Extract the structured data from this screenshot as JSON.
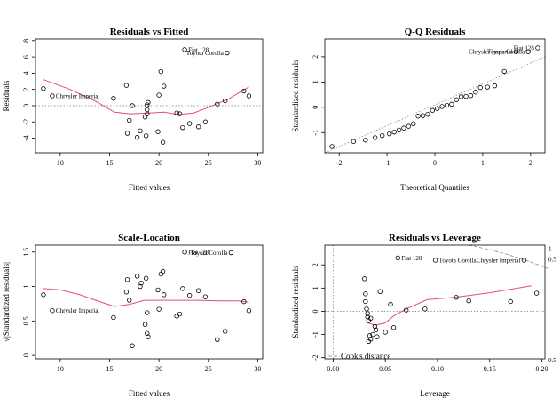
{
  "chart_data": [
    {
      "type": "scatter",
      "title": "Residuals vs Fitted",
      "xlabel": "Fitted values",
      "ylabel": "Residuals",
      "xlim": [
        7.5,
        30.5
      ],
      "ylim": [
        -5.8,
        8.2
      ],
      "xticks": [
        10,
        15,
        20,
        25,
        30
      ],
      "yticks": [
        -4,
        -2,
        0,
        2,
        4,
        6,
        8
      ],
      "refline": 0,
      "points": [
        {
          "x": 8.3,
          "y": 2.1
        },
        {
          "x": 9.2,
          "y": 1.2,
          "label": "Chrysler Imperial"
        },
        {
          "x": 15.4,
          "y": 0.9
        },
        {
          "x": 16.7,
          "y": 2.5
        },
        {
          "x": 16.8,
          "y": -3.4
        },
        {
          "x": 17.0,
          "y": -1.8
        },
        {
          "x": 17.3,
          "y": 0.0
        },
        {
          "x": 17.8,
          "y": -3.9
        },
        {
          "x": 18.1,
          "y": -3.1
        },
        {
          "x": 18.6,
          "y": -1.4
        },
        {
          "x": 18.7,
          "y": -3.7
        },
        {
          "x": 18.8,
          "y": -1.0
        },
        {
          "x": 18.8,
          "y": -0.5
        },
        {
          "x": 18.8,
          "y": 0.1
        },
        {
          "x": 18.9,
          "y": 0.4
        },
        {
          "x": 19.9,
          "y": -3.2
        },
        {
          "x": 20.0,
          "y": 1.3
        },
        {
          "x": 20.2,
          "y": 4.2
        },
        {
          "x": 20.4,
          "y": -4.5
        },
        {
          "x": 20.5,
          "y": 2.4
        },
        {
          "x": 21.8,
          "y": -0.9
        },
        {
          "x": 22.1,
          "y": -1.0
        },
        {
          "x": 22.4,
          "y": -2.7
        },
        {
          "x": 23.1,
          "y": -2.2
        },
        {
          "x": 24.0,
          "y": -2.6
        },
        {
          "x": 24.7,
          "y": -2.0
        },
        {
          "x": 25.9,
          "y": 0.2
        },
        {
          "x": 26.7,
          "y": 0.6
        },
        {
          "x": 22.6,
          "y": 6.9,
          "label": "Fiat 128"
        },
        {
          "x": 28.6,
          "y": 1.8
        },
        {
          "x": 29.1,
          "y": 1.2
        },
        {
          "x": 26.9,
          "y": 6.5,
          "label": "Toyota Corolla"
        }
      ],
      "smooth": [
        [
          8.3,
          3.2
        ],
        [
          11,
          2.0
        ],
        [
          13.5,
          0.6
        ],
        [
          15.5,
          -0.8
        ],
        [
          17,
          -1.0
        ],
        [
          19,
          -0.9
        ],
        [
          20.5,
          -0.8
        ],
        [
          22,
          -1.1
        ],
        [
          23.5,
          -0.9
        ],
        [
          25,
          -0.2
        ],
        [
          27,
          0.8
        ],
        [
          29.1,
          2.3
        ]
      ]
    },
    {
      "type": "scatter",
      "title": "Q-Q Residuals",
      "xlabel": "Theoretical Quantiles",
      "ylabel": "Standardized residuals",
      "xlim": [
        -2.3,
        2.3
      ],
      "ylim": [
        -1.8,
        2.7
      ],
      "xticks": [
        -2,
        -1,
        0,
        1,
        2
      ],
      "yticks": [
        -1,
        0,
        1,
        2
      ],
      "refline_diagonal": [
        [
          -2.3,
          -1.8
        ],
        [
          2.3,
          2.0
        ]
      ],
      "points": [
        {
          "x": -2.15,
          "y": -1.55
        },
        {
          "x": -1.7,
          "y": -1.35
        },
        {
          "x": -1.45,
          "y": -1.3
        },
        {
          "x": -1.25,
          "y": -1.2
        },
        {
          "x": -1.1,
          "y": -1.12
        },
        {
          "x": -0.95,
          "y": -1.05
        },
        {
          "x": -0.85,
          "y": -0.98
        },
        {
          "x": -0.75,
          "y": -0.9
        },
        {
          "x": -0.65,
          "y": -0.82
        },
        {
          "x": -0.55,
          "y": -0.75
        },
        {
          "x": -0.45,
          "y": -0.65
        },
        {
          "x": -0.35,
          "y": -0.35
        },
        {
          "x": -0.25,
          "y": -0.33
        },
        {
          "x": -0.15,
          "y": -0.28
        },
        {
          "x": -0.05,
          "y": -0.12
        },
        {
          "x": 0.05,
          "y": -0.05
        },
        {
          "x": 0.15,
          "y": 0.03
        },
        {
          "x": 0.25,
          "y": 0.08
        },
        {
          "x": 0.35,
          "y": 0.12
        },
        {
          "x": 0.45,
          "y": 0.3
        },
        {
          "x": 0.55,
          "y": 0.42
        },
        {
          "x": 0.65,
          "y": 0.43
        },
        {
          "x": 0.75,
          "y": 0.46
        },
        {
          "x": 0.85,
          "y": 0.6
        },
        {
          "x": 0.95,
          "y": 0.78
        },
        {
          "x": 1.1,
          "y": 0.8
        },
        {
          "x": 1.25,
          "y": 0.85
        },
        {
          "x": 1.45,
          "y": 1.42
        },
        {
          "x": 1.7,
          "y": 2.2,
          "label": "Chrysler Imperial"
        },
        {
          "x": 1.95,
          "y": 2.2,
          "label": "Toyota Corolla"
        },
        {
          "x": 2.15,
          "y": 2.35,
          "label": "Fiat 128"
        }
      ]
    },
    {
      "type": "scatter",
      "title": "Scale-Location",
      "xlabel": "Fitted values",
      "ylabel": "√|Standardized residuals|",
      "xlim": [
        7.5,
        30.5
      ],
      "ylim": [
        -0.05,
        1.6
      ],
      "xticks": [
        10,
        15,
        20,
        25,
        30
      ],
      "yticks": [
        0.0,
        0.5,
        1.0,
        1.5
      ],
      "points": [
        {
          "x": 8.3,
          "y": 0.88
        },
        {
          "x": 9.2,
          "y": 0.65,
          "label": "Chrysler Imperial"
        },
        {
          "x": 15.4,
          "y": 0.55
        },
        {
          "x": 16.7,
          "y": 0.92
        },
        {
          "x": 16.8,
          "y": 1.1
        },
        {
          "x": 17.0,
          "y": 0.8
        },
        {
          "x": 17.3,
          "y": 0.14
        },
        {
          "x": 17.8,
          "y": 1.15
        },
        {
          "x": 18.1,
          "y": 1.0
        },
        {
          "x": 18.2,
          "y": 1.05
        },
        {
          "x": 18.6,
          "y": 0.45
        },
        {
          "x": 18.7,
          "y": 1.12
        },
        {
          "x": 18.8,
          "y": 0.62
        },
        {
          "x": 18.8,
          "y": 0.32
        },
        {
          "x": 18.9,
          "y": 0.27
        },
        {
          "x": 19.9,
          "y": 0.95
        },
        {
          "x": 20.0,
          "y": 0.67
        },
        {
          "x": 20.2,
          "y": 1.18
        },
        {
          "x": 20.4,
          "y": 1.22
        },
        {
          "x": 20.5,
          "y": 0.88
        },
        {
          "x": 21.8,
          "y": 0.57
        },
        {
          "x": 22.1,
          "y": 0.6
        },
        {
          "x": 22.4,
          "y": 0.97
        },
        {
          "x": 23.1,
          "y": 0.87
        },
        {
          "x": 24.0,
          "y": 0.94
        },
        {
          "x": 24.7,
          "y": 0.85
        },
        {
          "x": 25.9,
          "y": 0.23
        },
        {
          "x": 26.7,
          "y": 0.35
        },
        {
          "x": 22.6,
          "y": 1.5,
          "label": "Fiat 128"
        },
        {
          "x": 28.6,
          "y": 0.78
        },
        {
          "x": 29.1,
          "y": 0.65
        },
        {
          "x": 27.3,
          "y": 1.49,
          "label": "Toyota Corolla"
        }
      ],
      "smooth": [
        [
          8.3,
          0.97
        ],
        [
          10,
          0.95
        ],
        [
          12,
          0.88
        ],
        [
          14,
          0.78
        ],
        [
          15.5,
          0.71
        ],
        [
          17,
          0.74
        ],
        [
          18.5,
          0.8
        ],
        [
          20,
          0.8
        ],
        [
          22,
          0.8
        ],
        [
          24,
          0.8
        ],
        [
          26,
          0.79
        ],
        [
          28,
          0.79
        ],
        [
          29.1,
          0.77
        ]
      ]
    },
    {
      "type": "scatter",
      "title": "Residuals vs Leverage",
      "xlabel": "Leverage",
      "ylabel": "Standardized residuals",
      "xlim": [
        -0.008,
        0.203
      ],
      "ylim": [
        -2.05,
        2.85
      ],
      "xticks": [
        0.0,
        0.05,
        0.1,
        0.15,
        0.2
      ],
      "xtick_labels": [
        "0.00",
        "0.05",
        "0.10",
        "0.15",
        "0.20"
      ],
      "yticks": [
        -2,
        -1,
        0,
        1,
        2
      ],
      "contour_labels": [
        "1",
        "0.5",
        "0.5"
      ],
      "legend": "Cook's distance",
      "points": [
        {
          "x": 0.03,
          "y": 1.4
        },
        {
          "x": 0.031,
          "y": 0.75
        },
        {
          "x": 0.031,
          "y": 0.42
        },
        {
          "x": 0.032,
          "y": 0.1
        },
        {
          "x": 0.033,
          "y": -0.1
        },
        {
          "x": 0.033,
          "y": -0.25
        },
        {
          "x": 0.034,
          "y": -0.4
        },
        {
          "x": 0.034,
          "y": -1.3
        },
        {
          "x": 0.035,
          "y": -1.05
        },
        {
          "x": 0.036,
          "y": -0.3
        },
        {
          "x": 0.036,
          "y": -1.2
        },
        {
          "x": 0.038,
          "y": -1.0
        },
        {
          "x": 0.04,
          "y": -0.65
        },
        {
          "x": 0.041,
          "y": -0.8
        },
        {
          "x": 0.042,
          "y": -1.1
        },
        {
          "x": 0.045,
          "y": 0.85
        },
        {
          "x": 0.05,
          "y": -0.9
        },
        {
          "x": 0.055,
          "y": 0.3
        },
        {
          "x": 0.058,
          "y": -0.7
        },
        {
          "x": 0.07,
          "y": 0.05
        },
        {
          "x": 0.062,
          "y": 2.3,
          "label": "Fiat 128"
        },
        {
          "x": 0.088,
          "y": 0.1
        },
        {
          "x": 0.098,
          "y": 2.2,
          "label": "Toyota Corolla"
        },
        {
          "x": 0.118,
          "y": 0.6
        },
        {
          "x": 0.13,
          "y": 0.45
        },
        {
          "x": 0.17,
          "y": 0.42
        },
        {
          "x": 0.183,
          "y": 2.2,
          "label": "Chrysler Imperial"
        },
        {
          "x": 0.195,
          "y": 0.78
        }
      ],
      "smooth": [
        [
          0.03,
          -0.45
        ],
        [
          0.04,
          -0.6
        ],
        [
          0.05,
          -0.5
        ],
        [
          0.058,
          -0.2
        ],
        [
          0.07,
          0.1
        ],
        [
          0.09,
          0.5
        ],
        [
          0.12,
          0.62
        ],
        [
          0.15,
          0.8
        ],
        [
          0.19,
          1.1
        ]
      ]
    }
  ]
}
